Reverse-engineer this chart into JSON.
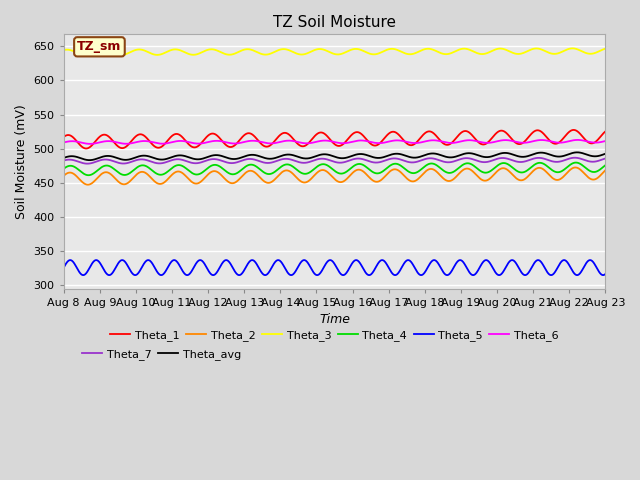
{
  "title": "TZ Soil Moisture",
  "xlabel": "Time",
  "ylabel": "Soil Moisture (mV)",
  "ylim": [
    295,
    668
  ],
  "xlim": [
    0,
    15
  ],
  "x_tick_labels": [
    "Aug 8",
    "Aug 9",
    "Aug 10",
    "Aug 11",
    "Aug 12",
    "Aug 13",
    "Aug 14",
    "Aug 15",
    "Aug 16",
    "Aug 17",
    "Aug 18",
    "Aug 19",
    "Aug 20",
    "Aug 21",
    "Aug 22",
    "Aug 23"
  ],
  "yticks": [
    300,
    350,
    400,
    450,
    500,
    550,
    600,
    650
  ],
  "series": [
    {
      "name": "Theta_1",
      "color": "#ff0000",
      "base": 510,
      "amplitude": 10,
      "period": 1.0,
      "trend": 8,
      "phase": 0.8
    },
    {
      "name": "Theta_2",
      "color": "#ff8800",
      "base": 456,
      "amplitude": 9,
      "period": 1.0,
      "trend": 8,
      "phase": 0.5
    },
    {
      "name": "Theta_3",
      "color": "#ffff00",
      "base": 641,
      "amplitude": 4,
      "period": 1.0,
      "trend": 2,
      "phase": 1.0
    },
    {
      "name": "Theta_4",
      "color": "#00dd00",
      "base": 468,
      "amplitude": 7,
      "period": 1.0,
      "trend": 5,
      "phase": 0.4
    },
    {
      "name": "Theta_5",
      "color": "#0000ff",
      "base": 326,
      "amplitude": 11,
      "period": 0.72,
      "trend": 0,
      "phase": 0.0
    },
    {
      "name": "Theta_6",
      "color": "#ff00ff",
      "base": 509,
      "amplitude": 2,
      "period": 1.0,
      "trend": 2,
      "phase": 0.1
    },
    {
      "name": "Theta_7",
      "color": "#9933cc",
      "base": 481,
      "amplitude": 3,
      "period": 1.0,
      "trend": 3,
      "phase": 0.6
    },
    {
      "name": "Theta_avg",
      "color": "#000000",
      "base": 486,
      "amplitude": 3,
      "period": 1.0,
      "trend": 6,
      "phase": 0.2
    }
  ],
  "legend_label": "TZ_sm",
  "legend_bg": "#ffffcc",
  "legend_border": "#8b4513",
  "bg_color": "#d8d8d8",
  "plot_bg": "#e8e8e8",
  "title_fontsize": 11,
  "axis_label_fontsize": 9,
  "tick_fontsize": 8
}
